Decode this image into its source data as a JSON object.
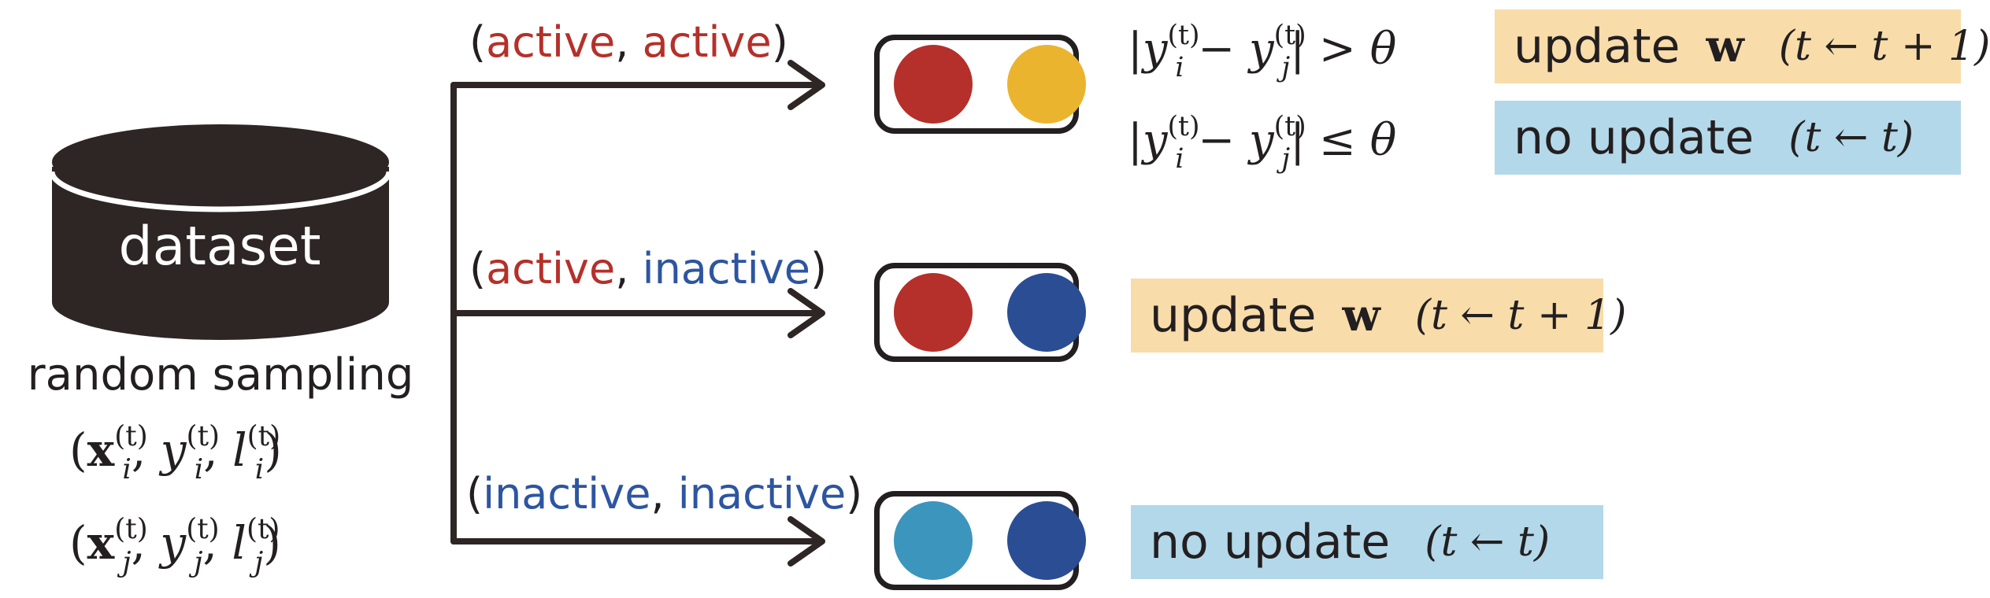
{
  "dataset": {
    "label": "dataset",
    "sampling_label": "random sampling",
    "tuple_i": {
      "x": "x",
      "y": "y",
      "l": "l",
      "sub": "i",
      "sup": "(t)"
    },
    "tuple_j": {
      "x": "x",
      "y": "y",
      "l": "l",
      "sub": "j",
      "sup": "(t)"
    }
  },
  "colors": {
    "active": "#b5302a",
    "inactive": "#2d55a0",
    "dot_red": "#b5302a",
    "dot_yellow": "#ebb42f",
    "dot_darkblue": "#2b4d94",
    "dot_lightblue": "#3c95bd",
    "update_bg": "#f8dcaa",
    "noupdate_bg": "#b3d8e9"
  },
  "branches": [
    {
      "word_a": "active",
      "word_b": "active",
      "conditions": [
        {
          "lhs": "|y",
          "minus": " − y",
          "rhs": "| > θ",
          "action": "update",
          "param": "w",
          "rule": "(t ← t + 1)"
        },
        {
          "lhs": "|y",
          "minus": " − y",
          "rhs": "| ≤ θ",
          "action": "no update",
          "rule": "(t ← t)"
        }
      ]
    },
    {
      "word_a": "active",
      "word_b": "inactive",
      "action": "update",
      "param": "w",
      "rule": "(t ← t + 1)"
    },
    {
      "word_a": "inactive",
      "word_b": "inactive",
      "action": "no update",
      "rule": "(t ← t)"
    }
  ],
  "math": {
    "sub_i": "i",
    "sub_j": "j",
    "sup_t": "(t)"
  }
}
